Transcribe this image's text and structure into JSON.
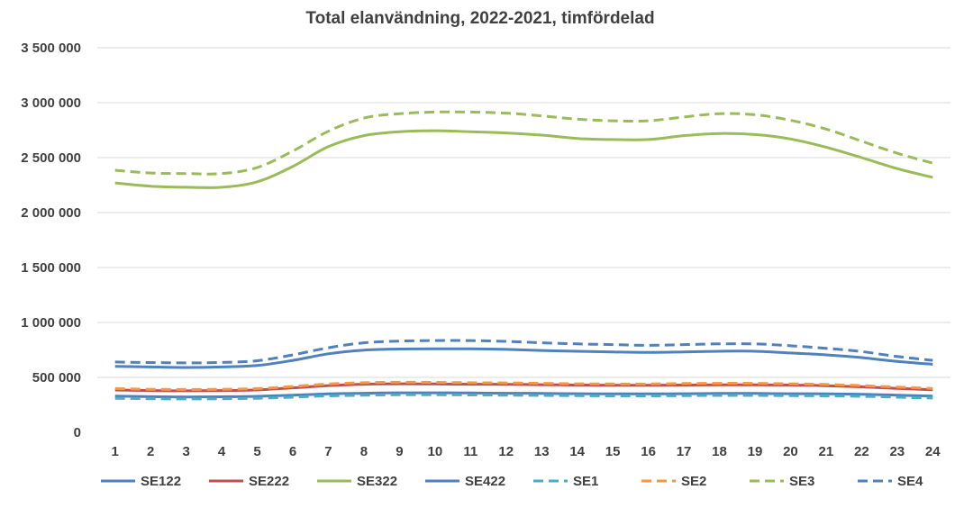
{
  "chart_data": {
    "type": "line",
    "title": "Total elanvändning, 2022-2021, timfördelad",
    "xlabel": "",
    "ylabel": "",
    "x": [
      1,
      2,
      3,
      4,
      5,
      6,
      7,
      8,
      9,
      10,
      11,
      12,
      13,
      14,
      15,
      16,
      17,
      18,
      19,
      20,
      21,
      22,
      23,
      24
    ],
    "ylim": [
      0,
      3500000
    ],
    "yticks": [
      0,
      500000,
      1000000,
      1500000,
      2000000,
      2500000,
      3000000,
      3500000
    ],
    "ytick_labels": [
      "0",
      "500 000",
      "1 000 000",
      "1 500 000",
      "2 000 000",
      "2 500 000",
      "3 000 000",
      "3 500 000"
    ],
    "grid": true,
    "legend_position": "bottom",
    "series": [
      {
        "name": "SE122",
        "color": "#4f81bd",
        "dash": "solid",
        "values": [
          330000,
          325000,
          322000,
          324000,
          328000,
          338000,
          350000,
          356000,
          360000,
          360000,
          358000,
          356000,
          354000,
          352000,
          350000,
          350000,
          352000,
          354000,
          354000,
          352000,
          350000,
          346000,
          338000,
          330000
        ]
      },
      {
        "name": "SE222",
        "color": "#c0504d",
        "dash": "solid",
        "values": [
          385000,
          380000,
          378000,
          380000,
          386000,
          405000,
          425000,
          438000,
          442000,
          440000,
          438000,
          436000,
          434000,
          430000,
          428000,
          428000,
          430000,
          432000,
          432000,
          430000,
          424000,
          414000,
          400000,
          388000
        ]
      },
      {
        "name": "SE322",
        "color": "#9bbb59",
        "dash": "solid",
        "values": [
          2270000,
          2240000,
          2230000,
          2230000,
          2280000,
          2420000,
          2600000,
          2700000,
          2735000,
          2745000,
          2735000,
          2725000,
          2705000,
          2675000,
          2665000,
          2665000,
          2700000,
          2720000,
          2710000,
          2670000,
          2595000,
          2500000,
          2400000,
          2320000
        ]
      },
      {
        "name": "SE422",
        "color": "#4f81bd",
        "dash": "solid",
        "values": [
          600000,
          595000,
          590000,
          595000,
          608000,
          655000,
          715000,
          748000,
          758000,
          760000,
          760000,
          755000,
          745000,
          738000,
          732000,
          728000,
          732000,
          738000,
          738000,
          722000,
          705000,
          680000,
          645000,
          620000
        ]
      },
      {
        "name": "SE1",
        "color": "#4bacc6",
        "dash": "dashed",
        "values": [
          310000,
          306000,
          304000,
          306000,
          310000,
          320000,
          332000,
          338000,
          342000,
          342000,
          340000,
          338000,
          336000,
          334000,
          332000,
          332000,
          334000,
          336000,
          336000,
          334000,
          332000,
          328000,
          320000,
          312000
        ]
      },
      {
        "name": "SE2",
        "color": "#f79646",
        "dash": "dashed",
        "values": [
          398000,
          392000,
          390000,
          392000,
          398000,
          418000,
          440000,
          452000,
          456000,
          455000,
          452000,
          450000,
          446000,
          442000,
          440000,
          440000,
          444000,
          446000,
          446000,
          442000,
          436000,
          425000,
          412000,
          400000
        ]
      },
      {
        "name": "SE3",
        "color": "#9bbb59",
        "dash": "dashed",
        "values": [
          2385000,
          2360000,
          2355000,
          2355000,
          2410000,
          2560000,
          2740000,
          2860000,
          2900000,
          2915000,
          2915000,
          2905000,
          2880000,
          2850000,
          2835000,
          2835000,
          2870000,
          2900000,
          2890000,
          2840000,
          2760000,
          2650000,
          2540000,
          2450000
        ]
      },
      {
        "name": "SE4",
        "color": "#4f81bd",
        "dash": "dashed",
        "values": [
          640000,
          635000,
          632000,
          636000,
          652000,
          705000,
          770000,
          815000,
          830000,
          835000,
          835000,
          828000,
          815000,
          805000,
          798000,
          792000,
          798000,
          805000,
          805000,
          788000,
          765000,
          735000,
          690000,
          655000
        ]
      }
    ]
  }
}
